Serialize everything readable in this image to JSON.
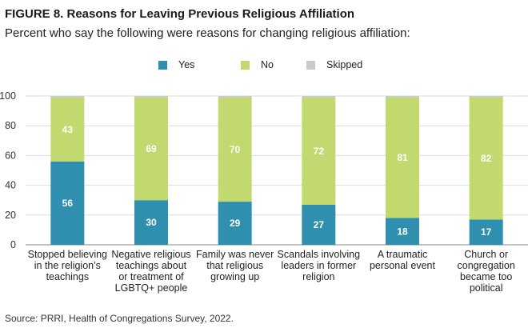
{
  "title": "FIGURE 8. Reasons for Leaving Previous Religious Affiliation",
  "subtitle": "Percent who say the following were reasons for changing religious affiliation:",
  "source": "Source: PRRI, Health of Congregations Survey, 2022.",
  "colors": {
    "yes": "#2e8fae",
    "no": "#c1d96e",
    "skipped": "#c9c9c9",
    "grid": "#dddddd",
    "axis": "#888888"
  },
  "chart_data": {
    "type": "bar",
    "stacked": true,
    "categories": [
      "Stopped believing in the religion’s teachings",
      "Negative religious teachings about or treatment of LGBTQ+ people",
      "Family was never that religious growing up",
      "Scandals involving leaders in former religion",
      "A traumatic personal event",
      "Church or congregation became too political"
    ],
    "category_lines": [
      [
        "Stopped believing",
        "in the religion’s",
        "teachings"
      ],
      [
        "Negative religious",
        "teachings about",
        "or treatment of",
        "LGBTQ+ people"
      ],
      [
        "Family was never",
        "that religious",
        "growing up"
      ],
      [
        "Scandals involving",
        "leaders in former",
        "religion"
      ],
      [
        "A traumatic",
        "personal event"
      ],
      [
        "Church or",
        "congregation",
        "became too",
        "political"
      ]
    ],
    "series": [
      {
        "name": "Yes",
        "values": [
          56,
          30,
          29,
          27,
          18,
          17
        ]
      },
      {
        "name": "No",
        "values": [
          43,
          69,
          70,
          72,
          81,
          82
        ]
      },
      {
        "name": "Skipped",
        "values": [
          1,
          1,
          1,
          1,
          1,
          1
        ]
      }
    ],
    "data_labels": {
      "Yes": [
        "56",
        "30",
        "29",
        "27",
        "18",
        "17"
      ],
      "No": [
        "43",
        "69",
        "70",
        "72",
        "81",
        "82"
      ]
    },
    "yticks": [
      "0",
      "20",
      "40",
      "60",
      "80",
      "100"
    ],
    "ylim": [
      0,
      100
    ],
    "grid": true,
    "legend_position": "top-center"
  }
}
